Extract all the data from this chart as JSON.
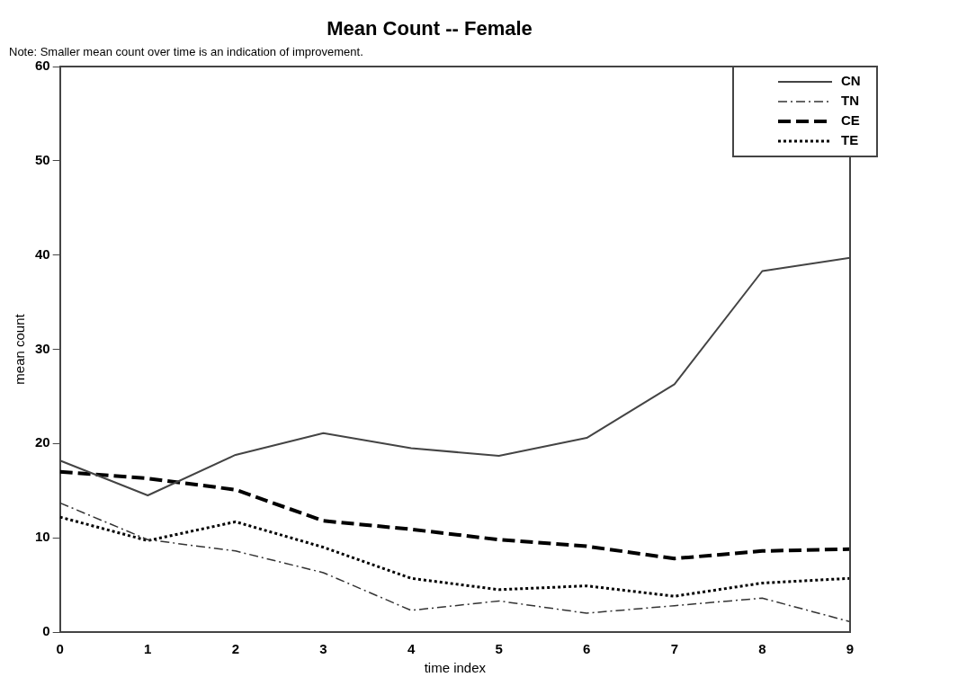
{
  "chart_data": {
    "type": "line",
    "title": "Mean Count -- Female",
    "subtitle": "Note: Smaller mean count over time is an indication of improvement.",
    "xlabel": "time index",
    "ylabel": "mean count",
    "x": [
      0,
      1,
      2,
      3,
      4,
      5,
      6,
      7,
      8,
      9
    ],
    "series": [
      {
        "name": "CN",
        "color": "#444444",
        "line_style": "solid",
        "values": [
          18.2,
          14.5,
          18.8,
          21.1,
          19.5,
          18.7,
          20.6,
          26.3,
          38.3,
          39.7
        ]
      },
      {
        "name": "TN",
        "color": "#333333",
        "line_style": "dashdot",
        "values": [
          13.7,
          9.8,
          8.6,
          6.3,
          2.3,
          3.3,
          2.0,
          2.8,
          3.6,
          1.1
        ]
      },
      {
        "name": "CE",
        "color": "#000000",
        "line_style": "dashed",
        "values": [
          17.0,
          16.3,
          15.1,
          11.8,
          10.9,
          9.8,
          9.1,
          7.8,
          8.6,
          8.8
        ]
      },
      {
        "name": "TE",
        "color": "#000000",
        "line_style": "dotted",
        "values": [
          12.2,
          9.7,
          11.7,
          9.0,
          5.7,
          4.5,
          4.9,
          3.8,
          5.2,
          5.7
        ]
      }
    ],
    "xlim": [
      0,
      9
    ],
    "xticks": [
      0,
      1,
      2,
      3,
      4,
      5,
      6,
      7,
      8,
      9
    ],
    "ylim": [
      0,
      60
    ],
    "yticks": [
      0,
      10,
      20,
      30,
      40,
      50,
      60
    ],
    "grid": false,
    "legend": "top right",
    "marker": "none"
  }
}
